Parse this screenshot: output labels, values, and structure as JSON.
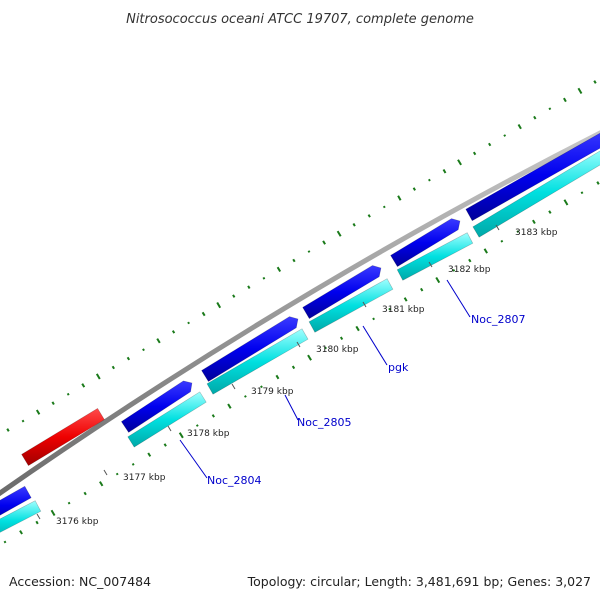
{
  "map": {
    "title": "Nitrosococcus oceani ATCC 19707, complete genome",
    "accession": "Accession: NC_007484",
    "summary": "Topology: circular; Length: 3,481,691 bp; Genes: 3,027"
  },
  "ticks": [
    "3176 kbp",
    "3177 kbp",
    "3178 kbp",
    "3179 kbp",
    "3180 kbp",
    "3181 kbp",
    "3182 kbp",
    "3183 kbp"
  ],
  "gene_labels": [
    "Noc_2804",
    "Noc_2805",
    "pgk",
    "Noc_2807"
  ],
  "colors": {
    "backbone": "#8a8a8a",
    "cds_forward": "#0000ee",
    "cds_reverse_marker": "#ee0000",
    "gene_band": "#00e0e0",
    "gc_skew": "#1a7a1a",
    "label": "#0000cc"
  }
}
